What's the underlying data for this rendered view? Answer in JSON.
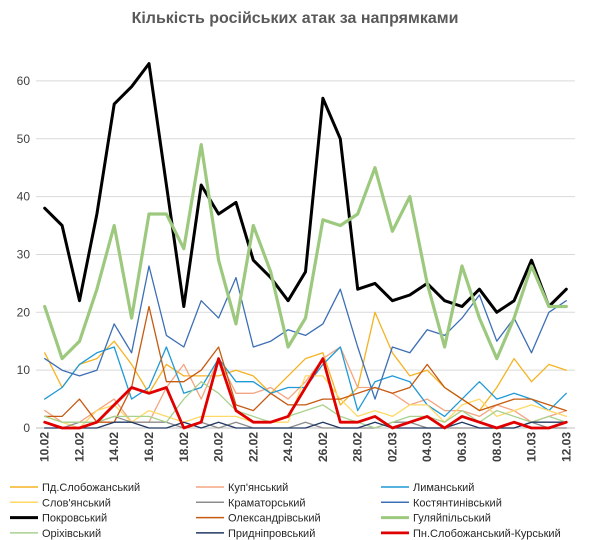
{
  "chart_data": {
    "type": "line",
    "title": "Кількість російських атак за напрямками",
    "xlabel": "",
    "ylabel": "",
    "ylim": [
      0,
      65
    ],
    "yticks": [
      0,
      10,
      20,
      30,
      40,
      50,
      60
    ],
    "grid": true,
    "legend_position": "bottom",
    "x": [
      "10.02",
      "11.02",
      "12.02",
      "13.02",
      "14.02",
      "15.02",
      "16.02",
      "17.02",
      "18.02",
      "19.02",
      "20.02",
      "21.02",
      "22.02",
      "23.02",
      "24.02",
      "25.02",
      "26.02",
      "27.02",
      "28.02",
      "01.03",
      "02.03",
      "03.03",
      "04.03",
      "05.03",
      "06.03",
      "07.03",
      "08.03",
      "09.03",
      "10.03",
      "11.03",
      "12.03"
    ],
    "x_tick_labels": [
      "10.02",
      "",
      "12.02",
      "",
      "14.02",
      "",
      "16.02",
      "",
      "18.02",
      "",
      "20.02",
      "",
      "22.02",
      "",
      "24.02",
      "",
      "26.02",
      "",
      "28.02",
      "",
      "02.03",
      "",
      "04.03",
      "",
      "06.03",
      "",
      "08.03",
      "",
      "10.03",
      "",
      "12.03"
    ],
    "series": [
      {
        "name": "Пд.Слобожанський",
        "color": "#f5b324",
        "width": 1.3,
        "values": [
          13,
          7,
          11,
          12,
          15,
          11,
          6,
          11,
          9,
          9,
          9,
          10,
          9,
          6,
          9,
          12,
          13,
          4,
          7,
          20,
          13,
          9,
          10,
          7,
          5,
          3,
          7,
          12,
          8,
          11,
          10
        ]
      },
      {
        "name": "Куп'янський",
        "color": "#f4a582",
        "width": 1.3,
        "values": [
          3,
          1,
          1,
          3,
          5,
          1,
          1,
          7,
          11,
          5,
          12,
          6,
          6,
          7,
          5,
          8,
          12,
          14,
          7,
          7,
          6,
          4,
          5,
          3,
          3,
          2,
          4,
          3,
          1,
          2,
          3
        ]
      },
      {
        "name": "Лиманський",
        "color": "#1f9ad6",
        "width": 1.3,
        "values": [
          5,
          7,
          11,
          13,
          14,
          5,
          7,
          14,
          6,
          7,
          12,
          8,
          8,
          6,
          7,
          7,
          11,
          14,
          3,
          8,
          9,
          8,
          4,
          2,
          5,
          8,
          5,
          6,
          5,
          3,
          6
        ]
      },
      {
        "name": "Слов'янський",
        "color": "#ffd966",
        "width": 1.3,
        "values": [
          2,
          1,
          0,
          3,
          4,
          1,
          3,
          2,
          1,
          2,
          2,
          2,
          1,
          1,
          1,
          9,
          9,
          5,
          2,
          3,
          2,
          4,
          4,
          1,
          4,
          5,
          2,
          3,
          4,
          3,
          2
        ]
      },
      {
        "name": "Краматорський",
        "color": "#8c8c8c",
        "width": 1.3,
        "values": [
          1,
          0,
          1,
          1,
          2,
          1,
          1,
          1,
          0,
          1,
          0,
          1,
          0,
          0,
          0,
          1,
          0,
          0,
          0,
          0,
          1,
          1,
          0,
          0,
          0,
          0,
          0,
          0,
          1,
          0,
          0
        ]
      },
      {
        "name": "Костянтинівський",
        "color": "#3d6fb5",
        "width": 1.3,
        "values": [
          12,
          10,
          9,
          10,
          18,
          13,
          28,
          16,
          14,
          22,
          19,
          26,
          14,
          15,
          17,
          16,
          18,
          24,
          14,
          5,
          14,
          13,
          17,
          16,
          19,
          23,
          15,
          19,
          13,
          20,
          22
        ]
      },
      {
        "name": "Покровський",
        "color": "#000000",
        "width": 3,
        "values": [
          38,
          35,
          22,
          37,
          56,
          59,
          63,
          42,
          21,
          42,
          37,
          39,
          29,
          26,
          22,
          27,
          57,
          50,
          24,
          25,
          22,
          23,
          25,
          22,
          21,
          24,
          20,
          22,
          29,
          21,
          24
        ]
      },
      {
        "name": "Олександрівський",
        "color": "#c55a11",
        "width": 1.3,
        "values": [
          2,
          2,
          5,
          1,
          1,
          7,
          21,
          8,
          8,
          10,
          14,
          4,
          3,
          6,
          4,
          4,
          5,
          5,
          6,
          7,
          6,
          7,
          11,
          7,
          5,
          3,
          4,
          5,
          5,
          4,
          3
        ]
      },
      {
        "name": "Гуляйпільський",
        "color": "#9dc97f",
        "width": 3.2,
        "values": [
          21,
          12,
          15,
          24,
          35,
          19,
          37,
          37,
          31,
          49,
          29,
          18,
          35,
          27,
          14,
          19,
          36,
          35,
          37,
          45,
          34,
          40,
          25,
          14,
          28,
          19,
          12,
          19,
          28,
          21,
          21
        ]
      },
      {
        "name": "Оріхівський",
        "color": "#a9d18e",
        "width": 1.3,
        "values": [
          2,
          1,
          1,
          1,
          2,
          2,
          2,
          1,
          5,
          8,
          6,
          3,
          2,
          1,
          2,
          3,
          4,
          2,
          1,
          0,
          1,
          2,
          2,
          1,
          3,
          1,
          3,
          2,
          1,
          2,
          1
        ]
      },
      {
        "name": "Придніпровський",
        "color": "#203864",
        "width": 1.3,
        "values": [
          0,
          0,
          0,
          0,
          1,
          1,
          0,
          0,
          1,
          0,
          1,
          0,
          0,
          0,
          0,
          0,
          1,
          0,
          0,
          1,
          0,
          0,
          0,
          0,
          1,
          0,
          0,
          0,
          1,
          1,
          1
        ]
      },
      {
        "name": "Пн.Слобожанський-Курський",
        "color": "#e00000",
        "width": 2.8,
        "values": [
          1,
          0,
          0,
          1,
          4,
          7,
          6,
          7,
          0,
          1,
          12,
          3,
          1,
          1,
          2,
          7,
          12,
          1,
          1,
          2,
          0,
          1,
          2,
          0,
          2,
          1,
          0,
          1,
          0,
          0,
          1
        ]
      }
    ]
  }
}
